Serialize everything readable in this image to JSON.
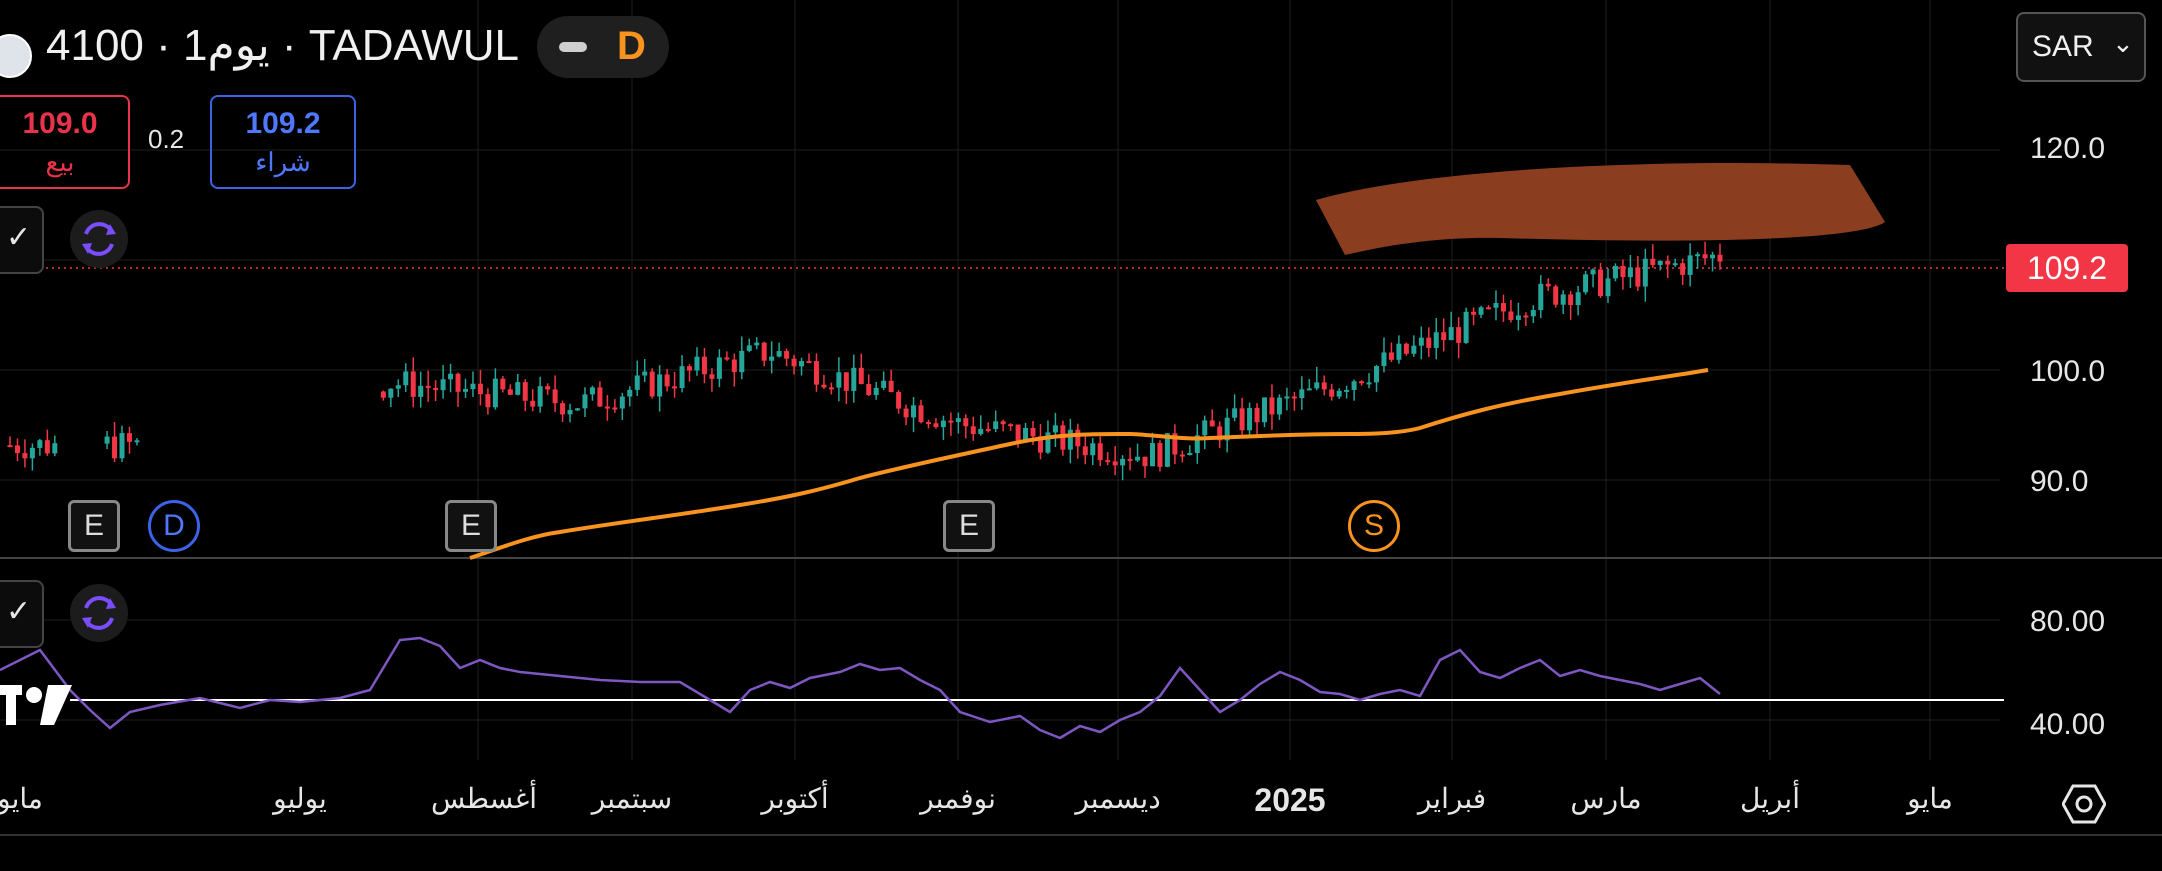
{
  "header": {
    "symbol_title": "4100 · 1يوم · TADAWUL",
    "toggle_letter": "D"
  },
  "trade": {
    "sell_price": "109.0",
    "sell_label": "بيع",
    "spread": "0.2",
    "buy_price": "109.2",
    "buy_label": "شراء"
  },
  "currency": {
    "label": "SAR"
  },
  "price_axis": {
    "ticks": [
      "120.0",
      "100.0",
      "90.0"
    ],
    "current_price": "109.2"
  },
  "rsi_axis": {
    "ticks": [
      "80.00",
      "40.00"
    ]
  },
  "events": {
    "earnings": "E",
    "dividend": "D",
    "split": "S"
  },
  "time_axis": {
    "labels": [
      "مايو",
      "يوليو",
      "أغسطس",
      "سبتمبر",
      "أكتوبر",
      "نوفمبر",
      "ديسمبر",
      "2025",
      "فبراير",
      "مارس",
      "أبريل",
      "مايو"
    ]
  },
  "colors": {
    "up": "#26a69a",
    "down": "#f23645",
    "ma": "#f7931e",
    "rsi": "#7e57c2",
    "highlight": "#8b3e1f"
  },
  "chart_data": {
    "type": "line",
    "price_series": {
      "x": [
        "2024-05",
        "2024-07",
        "2024-08",
        "2024-09",
        "2024-10",
        "2024-11",
        "2024-12",
        "2025-01",
        "2025-02",
        "2025-03"
      ],
      "close": [
        91,
        91,
        97,
        95,
        100,
        93,
        90,
        97,
        105,
        109.2
      ]
    },
    "moving_average": [
      80,
      82,
      85,
      87,
      89,
      92,
      94,
      94,
      96,
      100
    ],
    "rsi": [
      60,
      48,
      70,
      55,
      62,
      42,
      40,
      55,
      70,
      55
    ],
    "rsi_ylim": [
      30,
      90
    ],
    "ylim": [
      80,
      125
    ]
  }
}
